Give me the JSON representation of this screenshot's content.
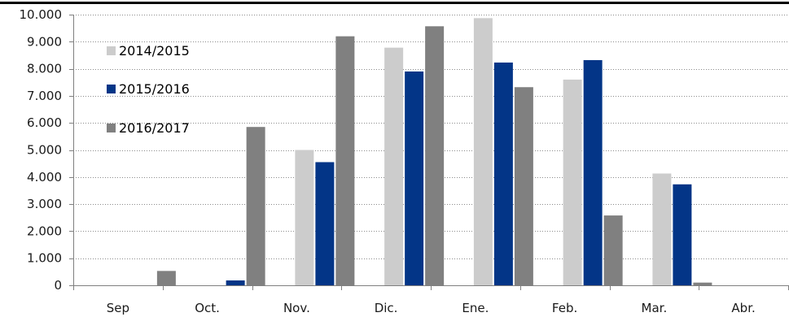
{
  "chart_data": {
    "type": "bar",
    "title": "",
    "xlabel": "",
    "ylabel": "",
    "categories": [
      "Sep",
      "Oct.",
      "Nov.",
      "Dic.",
      "Ene.",
      "Feb.",
      "Mar.",
      "Abr."
    ],
    "ylim": [
      0,
      10000
    ],
    "yticks": [
      0,
      1000,
      2000,
      3000,
      4000,
      5000,
      6000,
      7000,
      8000,
      9000,
      10000
    ],
    "ytick_labels": [
      "0",
      "1.000",
      "2.000",
      "3.000",
      "4.000",
      "5.000",
      "6.000",
      "7.000",
      "8.000",
      "9.000",
      "10.000"
    ],
    "grid": "horizontal dotted",
    "legend_position": "top-left",
    "series": [
      {
        "name": "2014/2015",
        "color": "#cccccc",
        "values": [
          0,
          0,
          5000,
          8780,
          9870,
          7600,
          4130,
          0
        ]
      },
      {
        "name": "2015/2016",
        "color": "#033587",
        "values": [
          0,
          180,
          4550,
          7900,
          8230,
          8320,
          3730,
          0
        ]
      },
      {
        "name": "2016/2017",
        "color": "#808080",
        "values": [
          530,
          5850,
          9200,
          9570,
          7320,
          2580,
          100,
          0
        ]
      }
    ]
  }
}
